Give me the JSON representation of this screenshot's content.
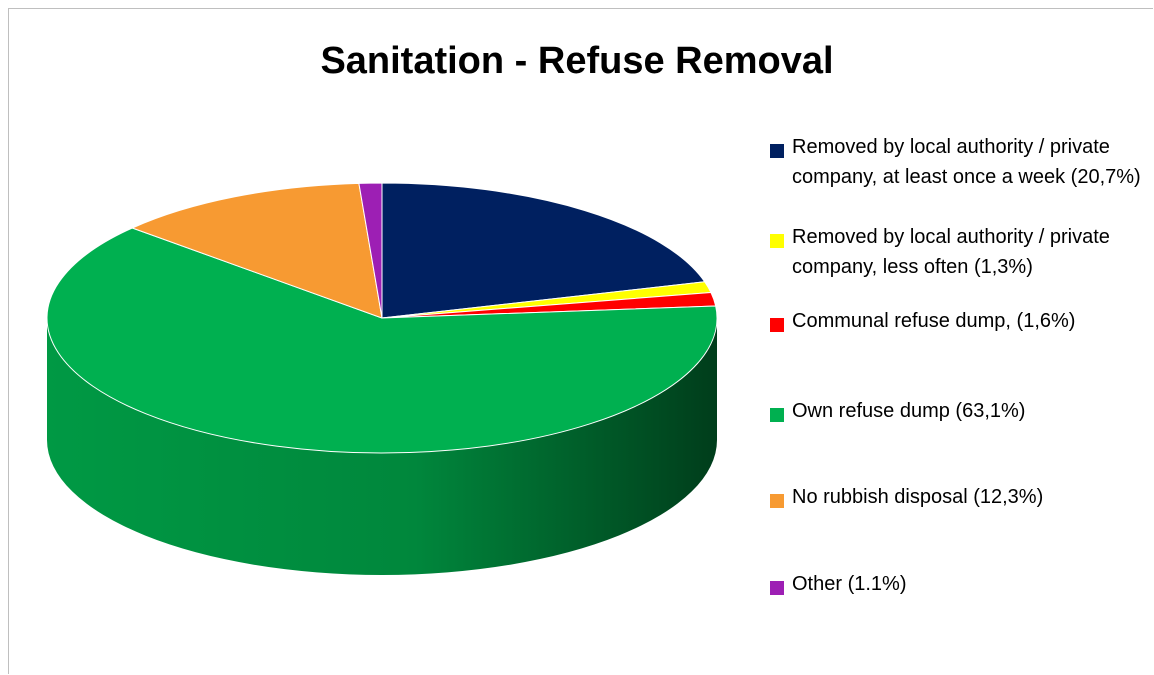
{
  "chart_data": {
    "type": "pie",
    "title": "Sanitation - Refuse Removal",
    "three_d": true,
    "legend_position": "right",
    "slices": [
      {
        "label": "Removed by local authority / private company, at least once a week (20,7%)",
        "value": 20.7,
        "color": "#002060"
      },
      {
        "label": "Removed by local authority / private company, less often (1,3%)",
        "value": 1.3,
        "color": "#ffff00"
      },
      {
        "label": "Communal refuse dump, (1,6%)",
        "value": 1.6,
        "color": "#ff0000"
      },
      {
        "label": "Own refuse dump (63,1%)",
        "value": 63.1,
        "color": "#00b050"
      },
      {
        "label": "No rubbish disposal (12,3%)",
        "value": 12.3,
        "color": "#f79a32"
      },
      {
        "label": "Other (1.1%)",
        "value": 1.1,
        "color": "#9d1fb4"
      }
    ]
  }
}
